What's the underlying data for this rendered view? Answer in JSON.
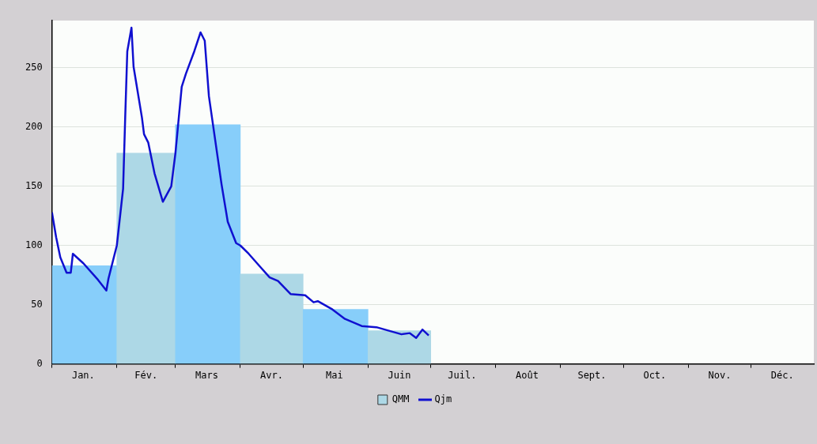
{
  "chart_data": {
    "type": "bar",
    "x": [
      "--01-16",
      "--02-15",
      "--03-16",
      "--04-16",
      "--05-16",
      "--06-16"
    ],
    "xlim": [
      "--01-01",
      "--12-31"
    ],
    "xticks": [
      {
        "value": "--01-01",
        "label": null
      },
      {
        "value": "--01-16",
        "label": "Jan."
      },
      {
        "value": "--02-01",
        "label": null
      },
      {
        "value": "--02-15",
        "label": "Fév."
      },
      {
        "value": "--03-01",
        "label": null
      },
      {
        "value": "--03-16",
        "label": "Mars"
      },
      {
        "value": "--04-01",
        "label": null
      },
      {
        "value": "--04-16",
        "label": "Avr."
      },
      {
        "value": "--05-01",
        "label": null
      },
      {
        "value": "--05-16",
        "label": "Mai"
      },
      {
        "value": "--06-01",
        "label": null
      },
      {
        "value": "--06-16",
        "label": "Juin"
      },
      {
        "value": "--07-01",
        "label": null
      },
      {
        "value": "--07-16",
        "label": "Juil."
      },
      {
        "value": "--08-01",
        "label": null
      },
      {
        "value": "--08-16",
        "label": "Août"
      },
      {
        "value": "--09-01",
        "label": null
      },
      {
        "value": "--09-16",
        "label": "Sept."
      },
      {
        "value": "--10-01",
        "label": null
      },
      {
        "value": "--10-16",
        "label": "Oct."
      },
      {
        "value": "--11-01",
        "label": null
      },
      {
        "value": "--11-16",
        "label": "Nov."
      },
      {
        "value": "--12-01",
        "label": null
      },
      {
        "value": "--12-16",
        "label": "Déc."
      }
    ],
    "series": [
      {
        "type": "bar",
        "name": "QMM",
        "color": "#add8e6",
        "colors": [
          "#87cefa",
          "#add8e6",
          "#87cefa",
          "#add8e6",
          "#87cefa",
          "#add8e6"
        ],
        "values": [
          83,
          178,
          202,
          76,
          46,
          28
        ]
      },
      {
        "type": "line",
        "name": "Qjm",
        "color": "#1010d0",
        "x": [
          "--01-01",
          "--01-03",
          "--01-05",
          "--01-08",
          "--01-10",
          "--01-11",
          "--01-16",
          "--01-23",
          "--01-27",
          "--01-28",
          "--02-01",
          "--02-04",
          "--02-05",
          "--02-06",
          "--02-08",
          "--02-09",
          "--02-13",
          "--02-14",
          "--02-16",
          "--02-19",
          "--02-23",
          "--02-27",
          "--03-01",
          "--03-04",
          "--03-06",
          "--03-10",
          "--03-13",
          "--03-15",
          "--03-17",
          "--03-20",
          "--03-23",
          "--03-26",
          "--03-30",
          "--04-01",
          "--04-05",
          "--04-10",
          "--04-15",
          "--04-19",
          "--04-25",
          "--05-02",
          "--05-06",
          "--05-08",
          "--05-15",
          "--05-21",
          "--05-29",
          "--06-05",
          "--06-11",
          "--06-17",
          "--06-21",
          "--06-24",
          "--06-27",
          "--06-30"
        ],
        "values": [
          128,
          107,
          90,
          77,
          77,
          93,
          85,
          71,
          62,
          72,
          100,
          148,
          208,
          264,
          284,
          251,
          208,
          194,
          187,
          161,
          137,
          150,
          178,
          234,
          245,
          264,
          280,
          273,
          226,
          189,
          152,
          120,
          102,
          100,
          93,
          83,
          73,
          70,
          59,
          58,
          52,
          53,
          46,
          38,
          32,
          31,
          28,
          25,
          26,
          22,
          29,
          24
        ]
      }
    ],
    "ylim": [
      0,
      290
    ],
    "yticks": [
      0,
      50,
      100,
      150,
      200,
      250
    ],
    "grid": "y",
    "legend": "bottom"
  }
}
